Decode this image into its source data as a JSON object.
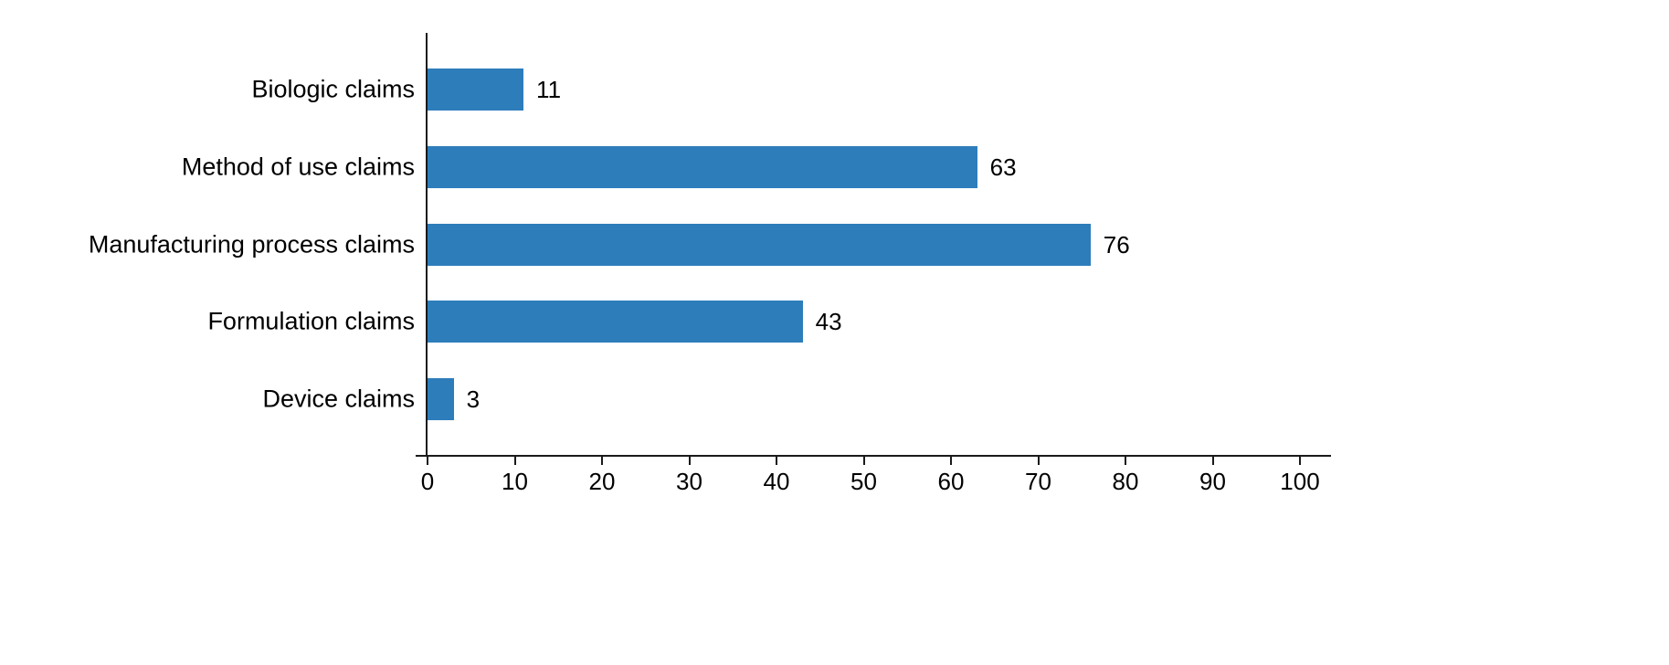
{
  "chart_data": {
    "type": "bar",
    "orientation": "horizontal",
    "title": "",
    "xlabel": "",
    "ylabel": "",
    "categories": [
      "Biologic claims",
      "Method of use claims",
      "Manufacturing process claims",
      "Formulation claims",
      "Device claims"
    ],
    "values": [
      11,
      63,
      76,
      43,
      3
    ],
    "value_labels": [
      "11",
      "63",
      "76",
      "43",
      "3"
    ],
    "xticks": [
      0,
      10,
      20,
      30,
      40,
      50,
      60,
      70,
      80,
      90,
      100
    ],
    "xtick_labels": [
      "0",
      "10",
      "20",
      "30",
      "40",
      "50",
      "60",
      "70",
      "80",
      "90",
      "100"
    ],
    "xlim": [
      0,
      103
    ],
    "grid": false,
    "legend": null,
    "bar_color": "#2d7dbb",
    "axis_color": "#1a1a1a",
    "background_color": "#ffffff"
  }
}
